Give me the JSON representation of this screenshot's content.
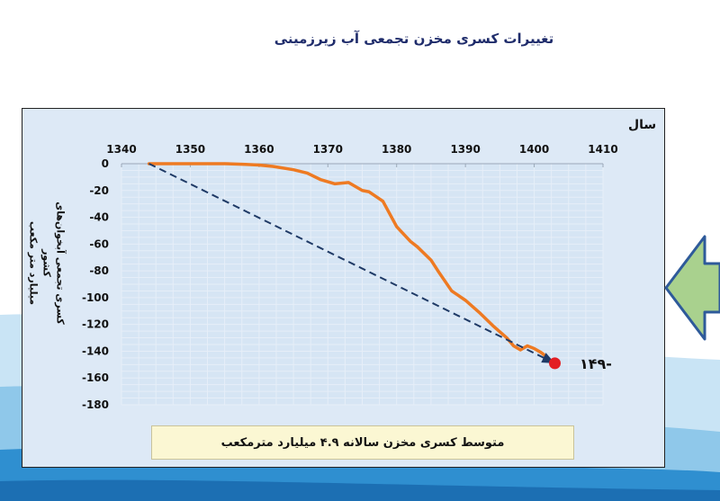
{
  "title": "تغییرات کسری مخزن تجمعی آب زیرزمینی",
  "x_axis_label": "سال",
  "y_axis_label_line1": "کسری تجمعی آبخوان‌های کشور",
  "y_axis_label_line2": "میلیارد متر مکعب",
  "callout": "-۱۴۹",
  "note": "متوسط کسری مخزن سالانه ۴.۹ میلیارد مترمکعب",
  "colors": {
    "series": "#ee7a22",
    "trend": "#1f3a66",
    "endpoint": "#e31e24",
    "plot_bg": "#dde9f6",
    "note_bg": "#fbf7d3"
  },
  "chart_data": {
    "type": "line",
    "title": "تغییرات کسری مخزن تجمعی آب زیرزمینی",
    "xlabel": "سال",
    "ylabel": "کسری تجمعی آبخوان‌های کشور میلیارد متر مکعب",
    "xlim": [
      1340,
      1410
    ],
    "ylim": [
      -180,
      0
    ],
    "x_ticks": [
      1340,
      1350,
      1360,
      1370,
      1380,
      1390,
      1400,
      1410
    ],
    "y_ticks": [
      0,
      -20,
      -40,
      -60,
      -80,
      -100,
      -120,
      -140,
      -160,
      -180
    ],
    "grid": true,
    "series": [
      {
        "style": "solid",
        "x": [
          1344,
          1350,
          1355,
          1358,
          1360,
          1362,
          1365,
          1367,
          1369,
          1371,
          1373,
          1375,
          1376,
          1378,
          1380,
          1382,
          1383,
          1385,
          1386,
          1388,
          1390,
          1392,
          1394,
          1396,
          1397,
          1398,
          1399,
          1400,
          1401,
          1402
        ],
        "y": [
          0,
          0,
          0,
          -0.5,
          -1,
          -2,
          -4.5,
          -7,
          -12,
          -15,
          -14,
          -20,
          -21,
          -28,
          -47,
          -58,
          -62,
          -72,
          -80,
          -95,
          -102,
          -111,
          -121,
          -130,
          -136,
          -139,
          -136,
          -138,
          -141,
          -145
        ]
      },
      {
        "style": "dashed",
        "x": [
          1344,
          1403
        ],
        "y": [
          0,
          -149
        ]
      }
    ],
    "annotations": [
      {
        "x": 1403,
        "y": -149,
        "text": "-۱۴۹"
      }
    ]
  }
}
